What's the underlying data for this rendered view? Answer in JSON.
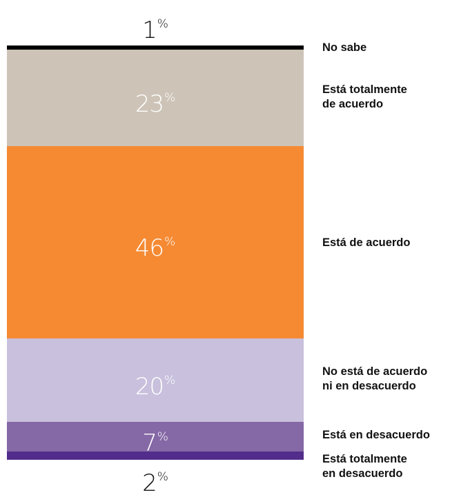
{
  "chart_data": {
    "type": "bar",
    "stacked": true,
    "percent_suffix": "%",
    "categories": [
      "No sabe",
      "Está totalmente\nde acuerdo",
      "Está de acuerdo",
      "No está de acuerdo\nni en desacuerdo",
      "Está en desacuerdo",
      "Está totalmente\nen desacuerdo"
    ],
    "values": [
      1,
      23,
      46,
      20,
      7,
      2
    ],
    "value_labels": [
      "1",
      "23",
      "46",
      "20",
      "7",
      "2"
    ],
    "colors": [
      "#000000",
      "#cdc3b7",
      "#f58a33",
      "#c8c0dc",
      "#8568a6",
      "#522d8c"
    ],
    "value_label_colors": [
      "#111111",
      "#ffffff",
      "#ffffff",
      "#ffffff",
      "#ffffff",
      "#111111"
    ],
    "value_label_position": [
      "above",
      "inside",
      "inside",
      "inside",
      "inside",
      "below"
    ],
    "title": "",
    "xlabel": "",
    "ylabel": "",
    "legend": "right"
  }
}
